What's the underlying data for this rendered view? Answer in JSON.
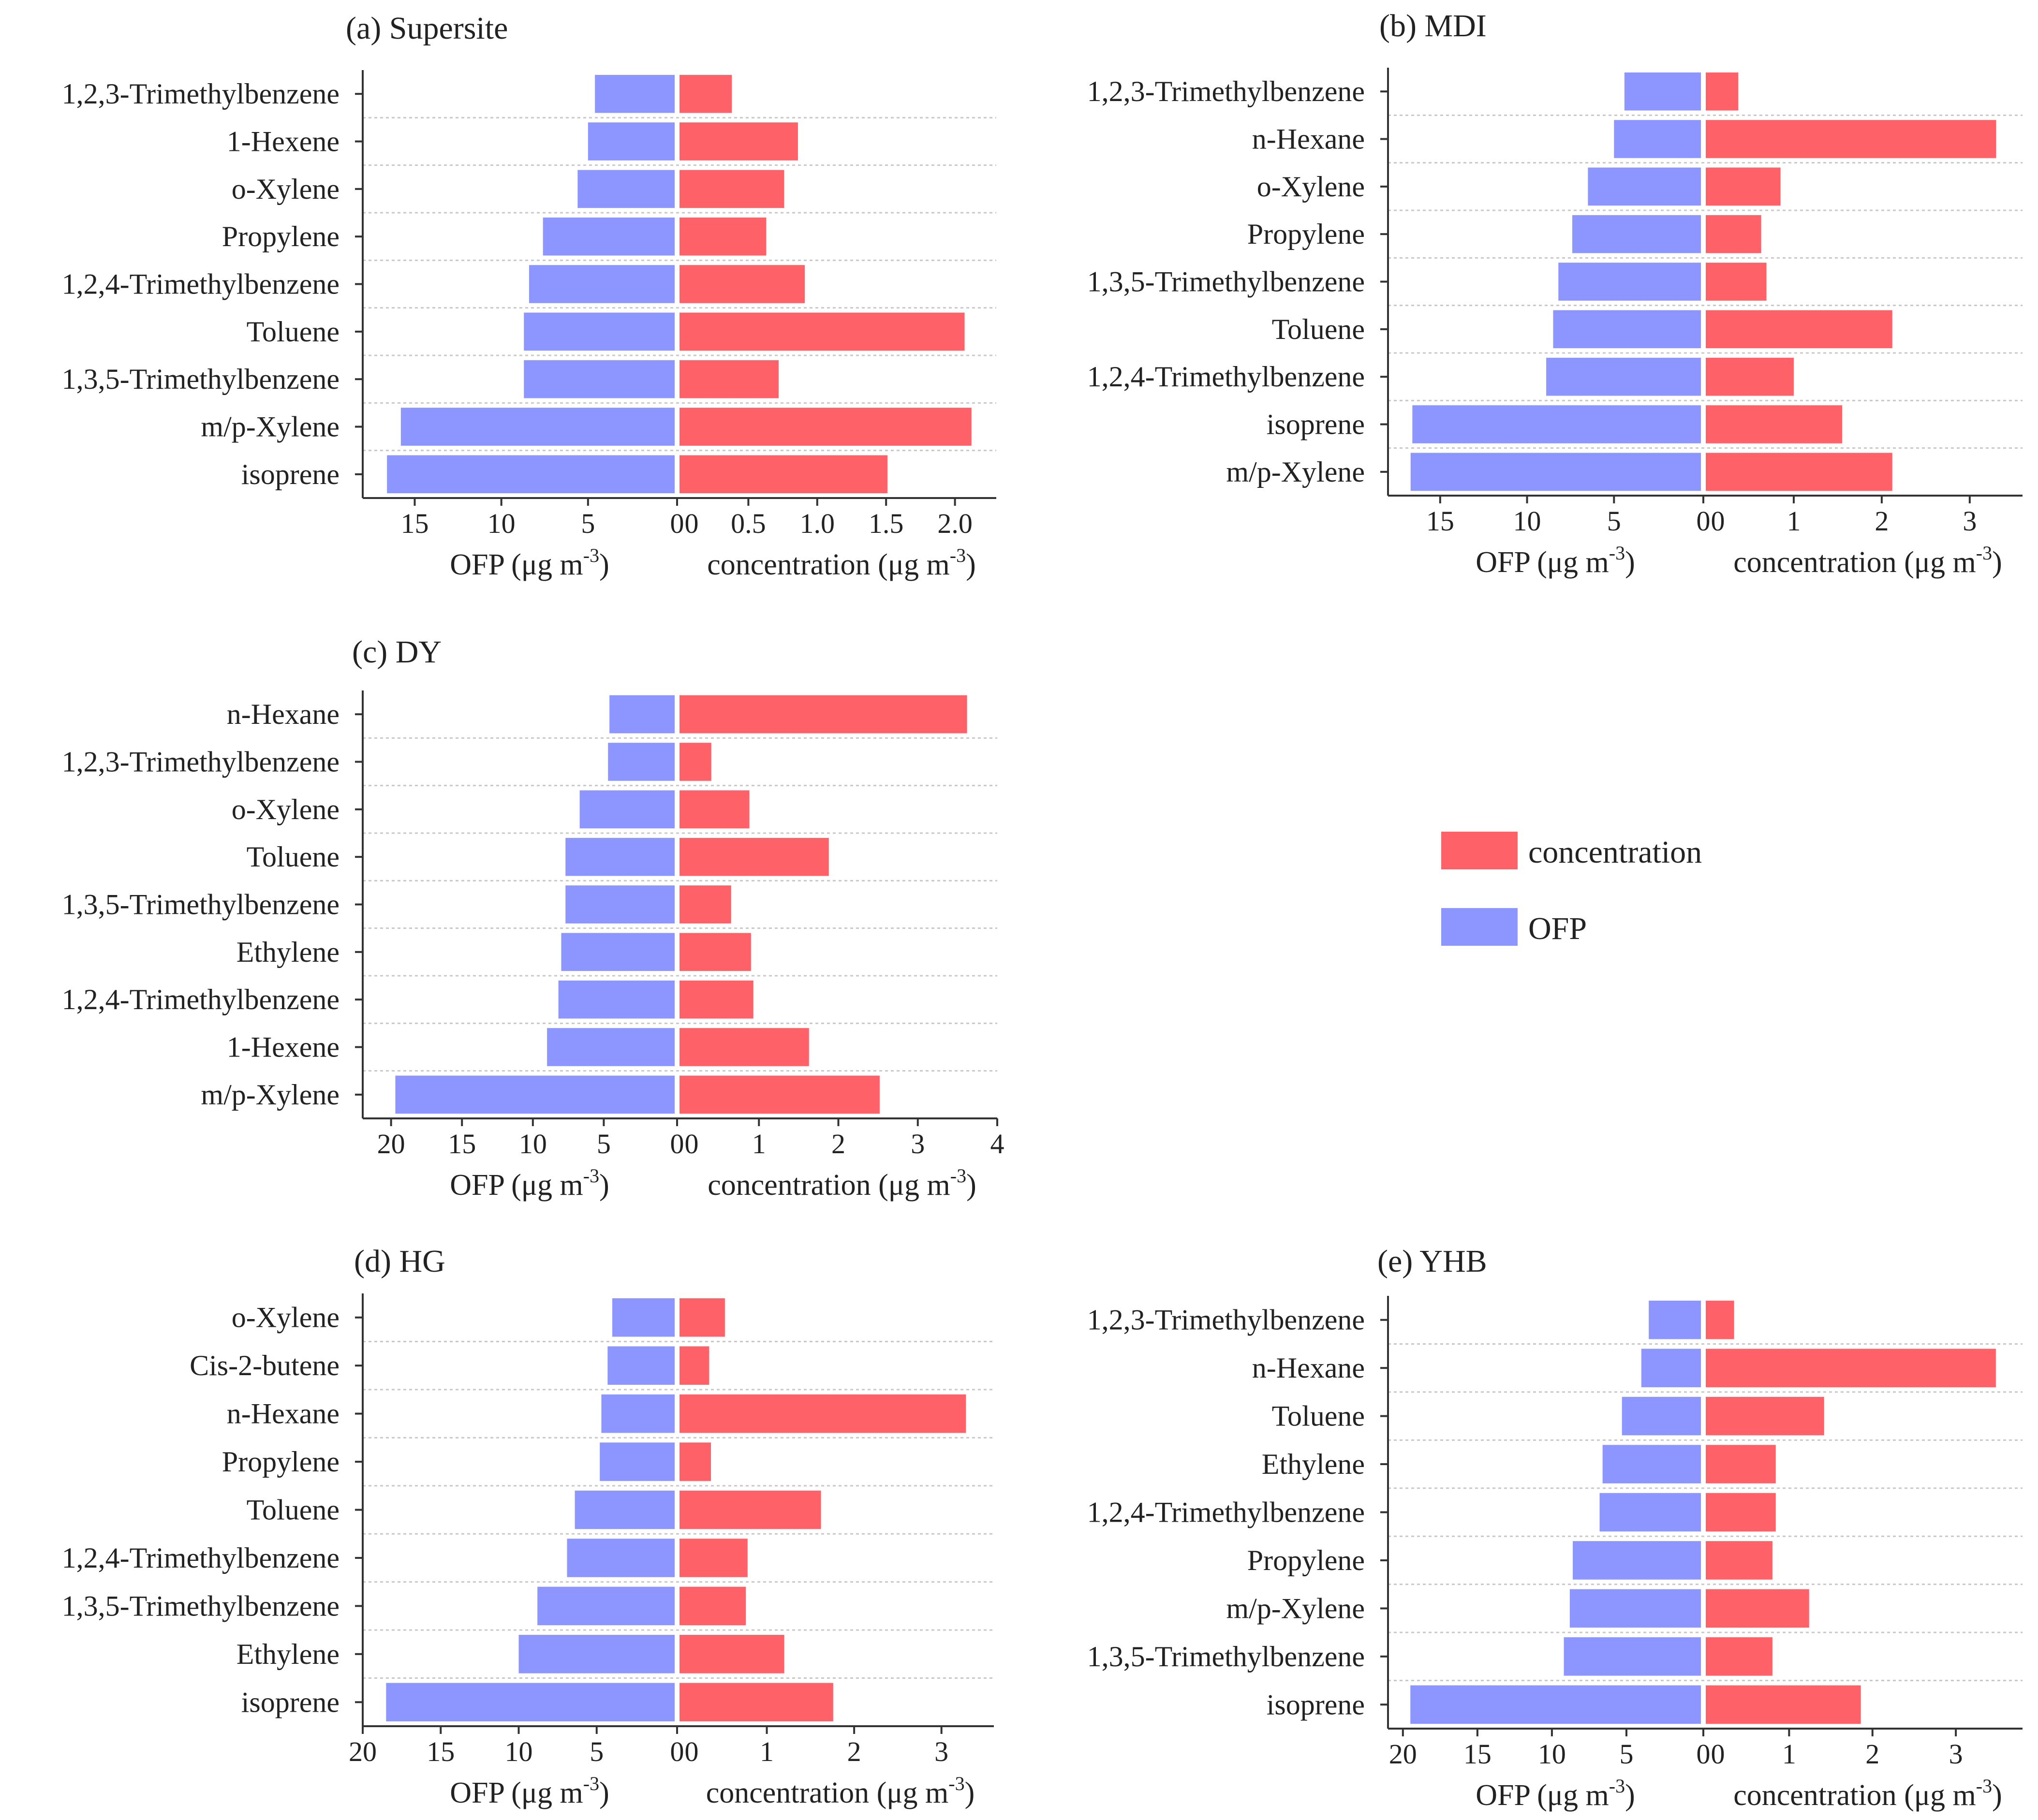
{
  "colors": {
    "concentration": "#fe6268",
    "ofp": "#8c96fe"
  },
  "legend": {
    "concentration": "concentration",
    "ofp": "OFP"
  },
  "chart_data": [
    {
      "type": "bar",
      "title": "(a) Supersite",
      "categories": [
        "1,2,3-Trimethylbenzene",
        "1-Hexene",
        "o-Xylene",
        "Propylene",
        "1,2,4-Trimethylbenzene",
        "Toluene",
        "1,3,5-Trimethylbenzene",
        "m/p-Xylene",
        "isoprene"
      ],
      "series": [
        {
          "name": "OFP",
          "values": [
            4.6,
            5.0,
            5.6,
            7.6,
            8.4,
            8.7,
            8.7,
            15.8,
            16.6
          ]
        },
        {
          "name": "concentration",
          "values": [
            0.38,
            0.86,
            0.76,
            0.63,
            0.91,
            2.07,
            0.72,
            2.12,
            1.51
          ]
        }
      ],
      "ofp_axis": {
        "label_main": "OFP (μg m",
        "label_sup": "-3",
        "label_end": ")",
        "max": 18,
        "ticks": [
          15,
          10,
          5,
          0
        ],
        "tick_labels": [
          "15",
          "10",
          "5",
          "0"
        ]
      },
      "conc_axis": {
        "label_main": "concentration (μg m",
        "label_sup": "-3",
        "label_end": ")",
        "max": 2.3,
        "ticks": [
          0,
          0.5,
          1.0,
          1.5,
          2.0
        ],
        "tick_labels": [
          "0",
          "0.5",
          "1.0",
          "1.5",
          "2.0"
        ]
      }
    },
    {
      "type": "bar",
      "title": "(b) MDI",
      "categories": [
        "1,2,3-Trimethylbenzene",
        "n-Hexane",
        "o-Xylene",
        "Propylene",
        "1,3,5-Trimethylbenzene",
        "Toluene",
        "1,2,4-Trimethylbenzene",
        "isoprene",
        "m/p-Xylene"
      ],
      "series": [
        {
          "name": "OFP",
          "values": [
            4.4,
            5.0,
            6.5,
            7.4,
            8.2,
            8.5,
            8.9,
            16.6,
            16.7
          ]
        },
        {
          "name": "concentration",
          "values": [
            0.37,
            3.3,
            0.85,
            0.63,
            0.69,
            2.12,
            1.0,
            1.55,
            2.12
          ]
        }
      ],
      "ofp_axis": {
        "label_main": "OFP (μg m",
        "label_sup": "-3",
        "label_end": ")",
        "max": 18,
        "ticks": [
          15,
          10,
          5,
          0
        ],
        "tick_labels": [
          "15",
          "10",
          "5",
          "0"
        ]
      },
      "conc_axis": {
        "label_main": "concentration (μg m",
        "label_sup": "-3",
        "label_end": ")",
        "max": 3.6,
        "ticks": [
          0,
          1,
          2,
          3
        ],
        "tick_labels": [
          "0",
          "1",
          "2",
          "3"
        ]
      }
    },
    {
      "type": "bar",
      "title": "(c) DY",
      "categories": [
        "n-Hexane",
        "1,2,3-Trimethylbenzene",
        "o-Xylene",
        "Toluene",
        "1,3,5-Trimethylbenzene",
        "Ethylene",
        "1,2,4-Trimethylbenzene",
        "1-Hexene",
        "m/p-Xylene"
      ],
      "series": [
        {
          "name": "OFP",
          "values": [
            4.6,
            4.7,
            6.7,
            7.7,
            7.7,
            8.0,
            8.2,
            9.0,
            19.7
          ]
        },
        {
          "name": "concentration",
          "values": [
            3.62,
            0.4,
            0.88,
            1.88,
            0.65,
            0.9,
            0.93,
            1.63,
            2.52
          ]
        }
      ],
      "ofp_axis": {
        "label_main": "OFP (μg m",
        "label_sup": "-3",
        "label_end": ")",
        "max": 22,
        "ticks": [
          20,
          15,
          10,
          5,
          0
        ],
        "tick_labels": [
          "20",
          "15",
          "10",
          "5",
          "0"
        ]
      },
      "conc_axis": {
        "label_main": "concentration (μg m",
        "label_sup": "-3",
        "label_end": ")",
        "max": 4,
        "ticks": [
          0,
          1,
          2,
          3,
          4
        ],
        "tick_labels": [
          "0",
          "1",
          "2",
          "3",
          "4"
        ]
      }
    },
    {
      "type": "bar",
      "title": "(d) HG",
      "categories": [
        "o-Xylene",
        "Cis-2-butene",
        "n-Hexane",
        "Propylene",
        "Toluene",
        "1,2,4-Trimethylbenzene",
        "1,3,5-Trimethylbenzene",
        "Ethylene",
        "isoprene"
      ],
      "series": [
        {
          "name": "OFP",
          "values": [
            4.0,
            4.3,
            4.7,
            4.8,
            6.4,
            6.9,
            8.8,
            10.0,
            18.5
          ]
        },
        {
          "name": "concentration",
          "values": [
            0.52,
            0.34,
            3.28,
            0.36,
            1.62,
            0.78,
            0.76,
            1.2,
            1.76
          ]
        }
      ],
      "ofp_axis": {
        "label_main": "OFP (μg m",
        "label_sup": "-3",
        "label_end": ")",
        "max": 20,
        "ticks": [
          20,
          15,
          10,
          5,
          0
        ],
        "tick_labels": [
          "20",
          "15",
          "10",
          "5",
          "0"
        ]
      },
      "conc_axis": {
        "label_main": "concentration (μg m",
        "label_sup": "-3",
        "label_end": ")",
        "max": 3.6,
        "ticks": [
          0,
          1,
          2,
          3
        ],
        "tick_labels": [
          "0",
          "1",
          "2",
          "3"
        ]
      }
    },
    {
      "type": "bar",
      "title": "(e) YHB",
      "categories": [
        "1,2,3-Trimethylbenzene",
        "n-Hexane",
        "Toluene",
        "Ethylene",
        "1,2,4-Trimethylbenzene",
        "Propylene",
        "m/p-Xylene",
        "1,3,5-Trimethylbenzene",
        "isoprene"
      ],
      "series": [
        {
          "name": "OFP",
          "values": [
            3.5,
            4.0,
            5.3,
            6.6,
            6.8,
            8.6,
            8.8,
            9.2,
            19.5
          ]
        },
        {
          "name": "concentration",
          "values": [
            0.34,
            3.48,
            1.42,
            0.84,
            0.84,
            0.8,
            1.24,
            0.8,
            1.86
          ]
        }
      ],
      "ofp_axis": {
        "label_main": "OFP (μg m",
        "label_sup": "-3",
        "label_end": ")",
        "max": 21,
        "ticks": [
          20,
          15,
          10,
          5,
          0
        ],
        "tick_labels": [
          "20",
          "15",
          "10",
          "5",
          "0"
        ]
      },
      "conc_axis": {
        "label_main": "concentration (μg m",
        "label_sup": "-3",
        "label_end": ")",
        "max": 3.8,
        "ticks": [
          0,
          1,
          2,
          3
        ],
        "tick_labels": [
          "0",
          "1",
          "2",
          "3"
        ]
      }
    }
  ]
}
